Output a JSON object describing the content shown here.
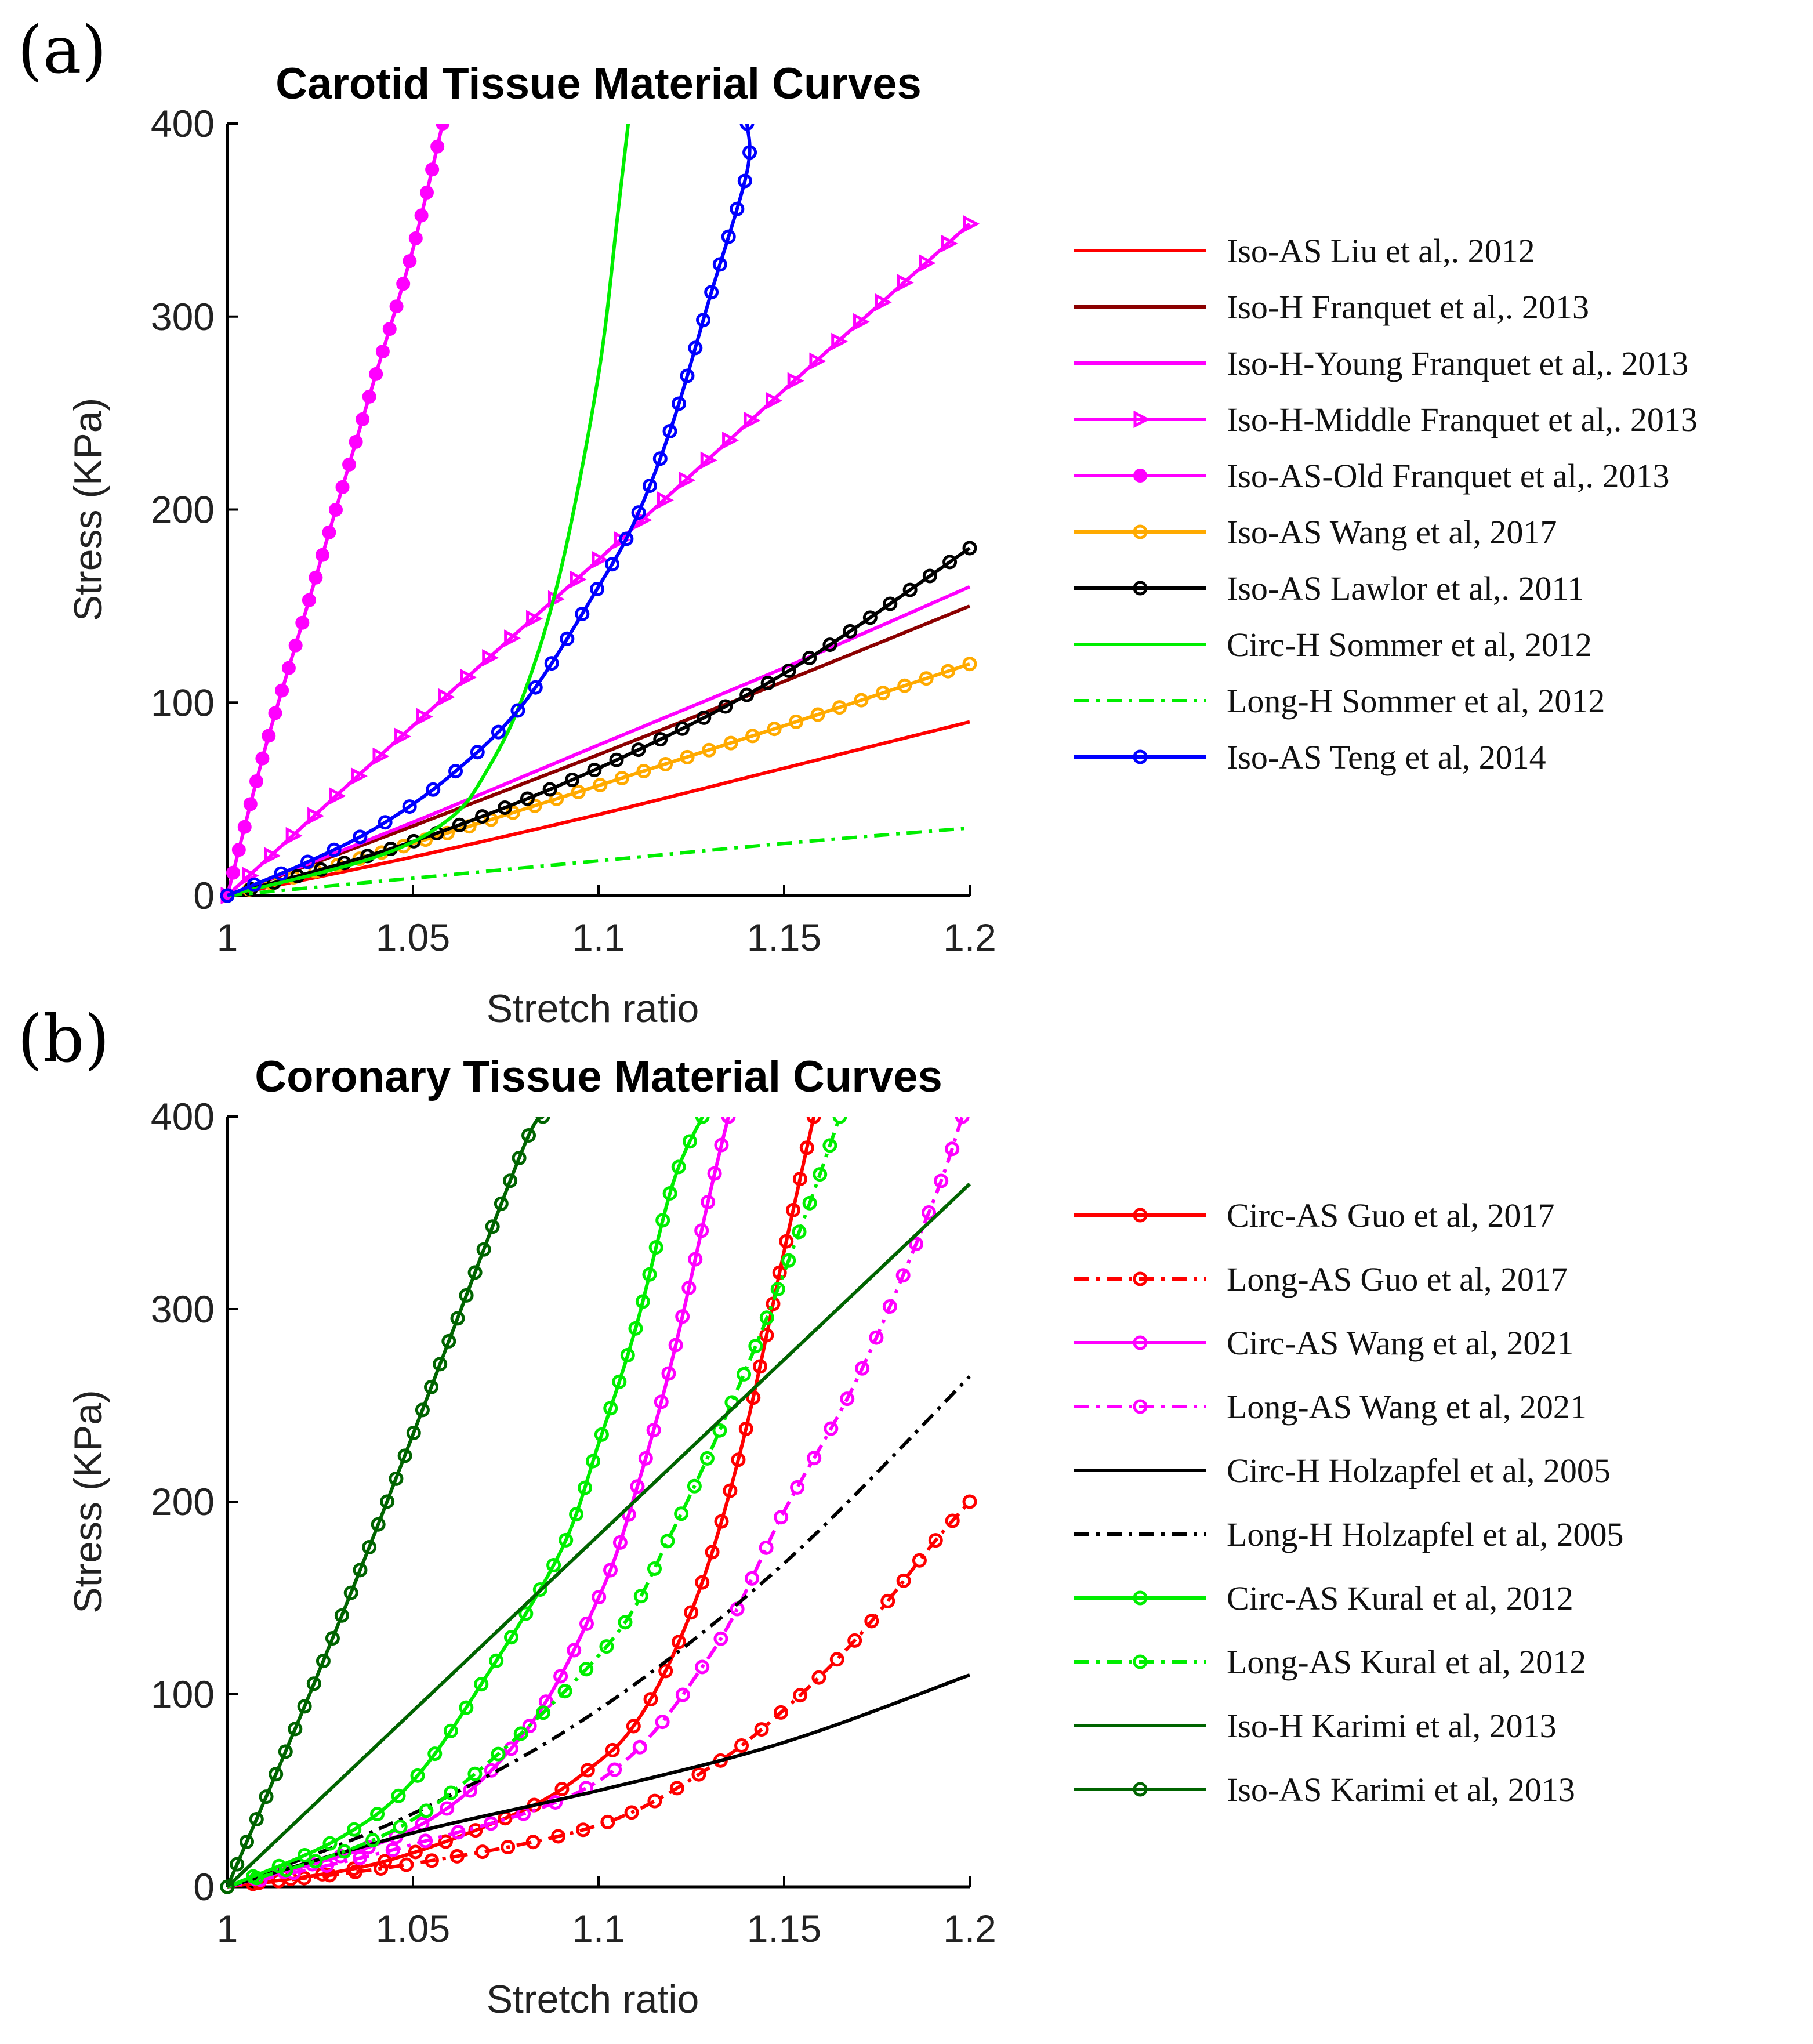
{
  "panel_labels": [
    "(a)",
    "(b)"
  ],
  "chart_data": [
    {
      "type": "line",
      "title": "Carotid Tissue Material Curves",
      "xlabel": "Stretch ratio",
      "ylabel": "Stress (KPa)",
      "xlim": [
        1,
        1.2
      ],
      "ylim": [
        0,
        400
      ],
      "xticks": [
        "1",
        "1.05",
        "1.1",
        "1.15",
        "1.2"
      ],
      "yticks": [
        "0",
        "100",
        "200",
        "300",
        "400"
      ],
      "legend_position": "right",
      "series": [
        {
          "name": "Iso-AS Liu et al,. 2012",
          "color": "#ff0000",
          "dash": "solid",
          "marker": "none",
          "x": [
            1,
            1.05,
            1.1,
            1.15,
            1.2
          ],
          "y": [
            0,
            20,
            42,
            66,
            90
          ]
        },
        {
          "name": "Iso-H Franquet et al,. 2013",
          "color": "#8b0000",
          "dash": "solid",
          "marker": "none",
          "x": [
            1,
            1.05,
            1.1,
            1.15,
            1.2
          ],
          "y": [
            0,
            36,
            73,
            111,
            150
          ]
        },
        {
          "name": "Iso-H-Young Franquet et al,. 2013",
          "color": "#ff00ff",
          "dash": "solid",
          "marker": "none",
          "x": [
            1,
            1.05,
            1.1,
            1.15,
            1.2
          ],
          "y": [
            0,
            38,
            78,
            118,
            160
          ]
        },
        {
          "name": "Iso-H-Middle Franquet et al,. 2013",
          "color": "#ff00ff",
          "dash": "solid",
          "marker": "triangle",
          "x": [
            1,
            1.05,
            1.1,
            1.15,
            1.2
          ],
          "y": [
            0,
            88,
            174,
            262,
            348
          ]
        },
        {
          "name": "Iso-AS-Old Franquet et al,. 2013",
          "color": "#ff00ff",
          "dash": "solid",
          "marker": "dot",
          "x": [
            1,
            1.01,
            1.02,
            1.03,
            1.04,
            1.05,
            1.058
          ],
          "y": [
            0,
            75,
            140,
            205,
            270,
            335,
            400
          ]
        },
        {
          "name": "Iso-AS Wang et al, 2017",
          "color": "#ffaa00",
          "dash": "solid",
          "marker": "circle",
          "x": [
            1,
            1.05,
            1.1,
            1.15,
            1.2
          ],
          "y": [
            0,
            27,
            57,
            88,
            120
          ]
        },
        {
          "name": "Iso-AS Lawlor et al,. 2011",
          "color": "#000000",
          "dash": "solid",
          "marker": "circle",
          "x": [
            1,
            1.05,
            1.1,
            1.15,
            1.2
          ],
          "y": [
            0,
            28,
            66,
            115,
            180
          ]
        },
        {
          "name": "Circ-H Sommer et al, 2012",
          "color": "#00ee00",
          "dash": "solid",
          "marker": "none",
          "x": [
            1,
            1.04,
            1.06,
            1.07,
            1.08,
            1.09,
            1.1,
            1.105,
            1.108
          ],
          "y": [
            0,
            20,
            40,
            65,
            105,
            170,
            270,
            350,
            400
          ]
        },
        {
          "name": "Long-H Sommer et al, 2012",
          "color": "#00ee00",
          "dash": "dashdot",
          "marker": "none",
          "x": [
            1,
            1.05,
            1.1,
            1.15,
            1.2
          ],
          "y": [
            0,
            9,
            18,
            27,
            35
          ]
        },
        {
          "name": "Iso-AS Teng et al, 2014",
          "color": "#0000ff",
          "dash": "solid",
          "marker": "circle",
          "x": [
            1,
            1.02,
            1.04,
            1.06,
            1.08,
            1.1,
            1.11,
            1.12,
            1.13,
            1.14,
            1.14
          ],
          "y": [
            0,
            16,
            35,
            62,
            100,
            160,
            195,
            245,
            310,
            375,
            400
          ]
        }
      ]
    },
    {
      "type": "line",
      "title": "Coronary Tissue Material Curves",
      "xlabel": "Stretch ratio",
      "ylabel": "Stress (KPa)",
      "xlim": [
        1,
        1.2
      ],
      "ylim": [
        0,
        400
      ],
      "xticks": [
        "1",
        "1.05",
        "1.1",
        "1.15",
        "1.2"
      ],
      "yticks": [
        "0",
        "100",
        "200",
        "300",
        "400"
      ],
      "legend_position": "right",
      "series": [
        {
          "name": "Circ-AS Guo et al, 2017",
          "color": "#ff0000",
          "dash": "solid",
          "marker": "circle",
          "x": [
            1,
            1.04,
            1.08,
            1.1,
            1.11,
            1.12,
            1.13,
            1.14,
            1.15,
            1.158
          ],
          "y": [
            0,
            12,
            40,
            65,
            85,
            120,
            170,
            240,
            330,
            400
          ]
        },
        {
          "name": "Long-AS Guo et al, 2017",
          "color": "#ff0000",
          "dash": "dashdot",
          "marker": "circle",
          "x": [
            1,
            1.05,
            1.1,
            1.13,
            1.15,
            1.17,
            1.19,
            1.2
          ],
          "y": [
            0,
            12,
            32,
            62,
            92,
            130,
            178,
            200
          ]
        },
        {
          "name": "Circ-AS Wang et al, 2021",
          "color": "#ff00ff",
          "dash": "solid",
          "marker": "circle",
          "x": [
            1,
            1.05,
            1.08,
            1.1,
            1.11,
            1.12,
            1.13,
            1.135
          ],
          "y": [
            0,
            30,
            80,
            150,
            205,
            275,
            360,
            400
          ]
        },
        {
          "name": "Long-AS Wang et al, 2021",
          "color": "#ff00ff",
          "dash": "dashdot",
          "marker": "circle",
          "x": [
            1,
            1.05,
            1.1,
            1.13,
            1.15,
            1.17,
            1.19,
            1.198
          ],
          "y": [
            0,
            22,
            55,
            120,
            195,
            265,
            355,
            400
          ]
        },
        {
          "name": "Circ-H Holzapfel et al, 2005",
          "color": "#000000",
          "dash": "solid",
          "marker": "none",
          "x": [
            1,
            1.05,
            1.1,
            1.15,
            1.2
          ],
          "y": [
            0,
            28,
            50,
            75,
            110
          ]
        },
        {
          "name": "Long-H Holzapfel et al, 2005",
          "color": "#000000",
          "dash": "dashdot",
          "marker": "none",
          "x": [
            1,
            1.05,
            1.1,
            1.15,
            1.2
          ],
          "y": [
            0,
            38,
            92,
            168,
            265
          ]
        },
        {
          "name": "Circ-AS Kural et al, 2012",
          "color": "#00ee00",
          "dash": "solid",
          "marker": "circle",
          "x": [
            1,
            1.03,
            1.05,
            1.07,
            1.09,
            1.1,
            1.11,
            1.12,
            1.128
          ],
          "y": [
            0,
            25,
            55,
            110,
            175,
            230,
            290,
            365,
            400
          ]
        },
        {
          "name": "Long-AS Kural et al, 2012",
          "color": "#00ee00",
          "dash": "dashdot",
          "marker": "circle",
          "x": [
            1,
            1.05,
            1.1,
            1.12,
            1.14,
            1.155,
            1.165
          ],
          "y": [
            0,
            35,
            120,
            185,
            270,
            345,
            400
          ]
        },
        {
          "name": "Iso-H Karimi et al, 2013",
          "color": "#006400",
          "dash": "solid",
          "marker": "none",
          "x": [
            1,
            1.2
          ],
          "y": [
            0,
            365
          ]
        },
        {
          "name": "Iso-AS Karimi et al, 2013",
          "color": "#006400",
          "dash": "solid",
          "marker": "circle",
          "x": [
            1,
            1.02,
            1.04,
            1.06,
            1.08,
            1.085
          ],
          "y": [
            0,
            90,
            185,
            285,
            385,
            400
          ]
        }
      ]
    }
  ]
}
